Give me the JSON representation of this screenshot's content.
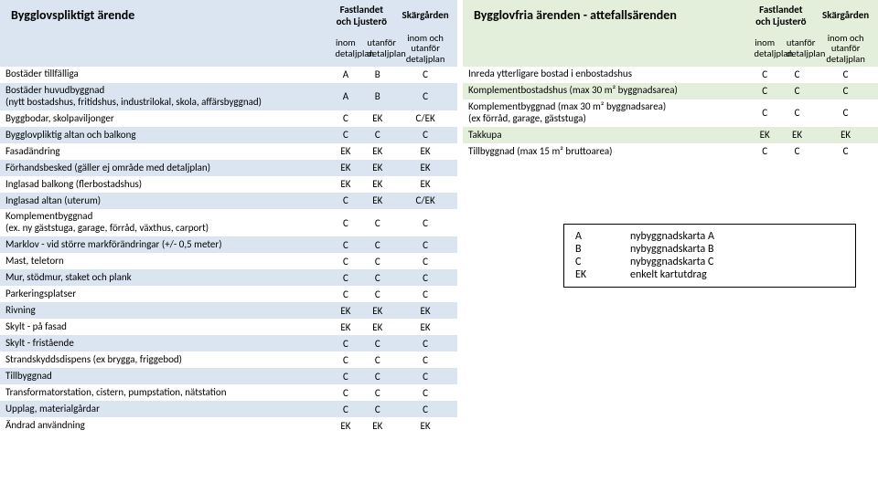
{
  "left_table": {
    "title": "Bygglovspliktigt ärende",
    "region_header": "Fastlandet och Ljusterö",
    "region_header2": "Skärgården",
    "col1": "inom detaljplan",
    "col2": "utanför detaljplan",
    "col3": "inom och utanför detaljplan",
    "rows": [
      {
        "label": "Bostäder tillfälliga",
        "v": [
          "A",
          "B",
          "C"
        ]
      },
      {
        "label": "Bostäder huvudbyggnad\n(nytt bostadshus, fritidshus, industrilokal, skola, affärsbyggnad)",
        "v": [
          "A",
          "B",
          "C"
        ]
      },
      {
        "label": "Byggbodar, skolpaviljonger",
        "v": [
          "C",
          "EK",
          "C/EK"
        ]
      },
      {
        "label": "Bygglovpliktig altan och balkong",
        "v": [
          "C",
          "C",
          "C"
        ]
      },
      {
        "label": "Fasadändring",
        "v": [
          "EK",
          "EK",
          "EK"
        ]
      },
      {
        "label": "Förhandsbesked (gäller ej område med detaljplan)",
        "v": [
          "EK",
          "EK",
          "EK"
        ]
      },
      {
        "label": "Inglasad balkong (flerbostadshus)",
        "v": [
          "EK",
          "EK",
          "EK"
        ]
      },
      {
        "label": "Inglasad altan (uterum)",
        "v": [
          "C",
          "EK",
          "C/EK"
        ]
      },
      {
        "label": "Komplementbyggnad\n(ex. ny gäststuga, garage, förråd, växthus, carport)",
        "v": [
          "C",
          "C",
          "C"
        ]
      },
      {
        "label": "Marklov - vid större markförändringar (+/- 0,5 meter)",
        "v": [
          "C",
          "C",
          "C"
        ]
      },
      {
        "label": "Mast, teletorn",
        "v": [
          "C",
          "C",
          "C"
        ]
      },
      {
        "label": "Mur, stödmur, staket och plank",
        "v": [
          "C",
          "C",
          "C"
        ]
      },
      {
        "label": "Parkeringsplatser",
        "v": [
          "C",
          "C",
          "C"
        ]
      },
      {
        "label": "Rivning",
        "v": [
          "EK",
          "EK",
          "EK"
        ]
      },
      {
        "label": "Skylt - på fasad",
        "v": [
          "EK",
          "EK",
          "EK"
        ]
      },
      {
        "label": "Skylt - fristående",
        "v": [
          "C",
          "C",
          "C"
        ]
      },
      {
        "label": "Strandskyddsdispens (ex brygga, friggebod)",
        "v": [
          "C",
          "C",
          "C"
        ]
      },
      {
        "label": "Tillbyggnad",
        "v": [
          "C",
          "C",
          "C"
        ]
      },
      {
        "label": "Transformatorstation, cistern, pumpstation, nätstation",
        "v": [
          "C",
          "C",
          "C"
        ]
      },
      {
        "label": "Upplag, materialgårdar",
        "v": [
          "C",
          "C",
          "C"
        ]
      },
      {
        "label": "Ändrad användning",
        "v": [
          "EK",
          "EK",
          "EK"
        ]
      }
    ]
  },
  "right_table": {
    "title": "Bygglovfria ärenden  - attefallsärenden",
    "region_header": "Fastlandet och Ljusterö",
    "region_header2": "Skärgården",
    "col1": "inom detaljplan",
    "col2": "utanför detaljplan",
    "col3": "inom och utanför detaljplan",
    "rows": [
      {
        "label": "Inreda ytterligare bostad i enbostadshus",
        "v": [
          "C",
          "C",
          "C"
        ]
      },
      {
        "label": "Komplementbostadshus (max 30 m² byggnadsarea)",
        "v": [
          "C",
          "C",
          "C"
        ]
      },
      {
        "label": "Komplementbyggnad (max 30 m² byggnadsarea)\n(ex förråd, garage, gäststuga)",
        "v": [
          "C",
          "C",
          "C"
        ]
      },
      {
        "label": "Takkupa",
        "v": [
          "EK",
          "EK",
          "EK"
        ]
      },
      {
        "label": "Tillbyggnad (max 15 m² bruttoarea)",
        "v": [
          "C",
          "C",
          "C"
        ]
      }
    ]
  },
  "legend": {
    "items": [
      {
        "key": "A",
        "label": "nybyggnadskarta A"
      },
      {
        "key": "B",
        "label": "nybyggnadskarta B"
      },
      {
        "key": "C",
        "label": "nybyggnadskarta C"
      },
      {
        "key": "EK",
        "label": "enkelt kartutdrag"
      }
    ]
  },
  "colors": {
    "blue_bg": "#dae5f1",
    "green_bg": "#e4efdb",
    "white": "#ffffff",
    "border": "#000000"
  }
}
